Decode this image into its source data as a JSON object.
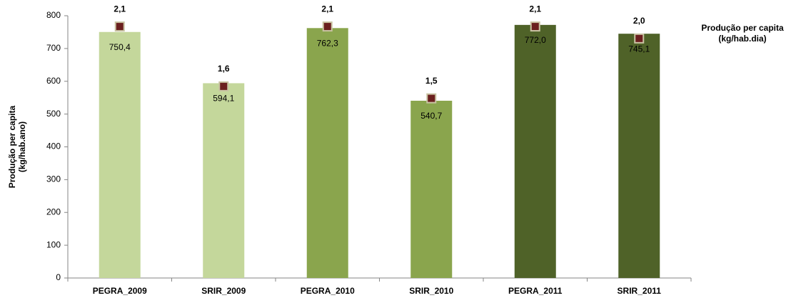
{
  "chart_data": {
    "type": "bar",
    "categories": [
      "PEGRA_2009",
      "SRIR_2009",
      "PEGRA_2010",
      "SRIR_2010",
      "PEGRA_2011",
      "SRIR_2011"
    ],
    "series": [
      {
        "values": [
          750.4,
          594.1,
          762.3,
          540.7,
          772.0,
          745.1
        ],
        "value_labels": [
          "750,4",
          "594,1",
          "762,3",
          "540,7",
          "772,0",
          "745,1"
        ],
        "colors": [
          "#c4d79b",
          "#c4d79b",
          "#8aa54d",
          "#8aa54d",
          "#4f6228",
          "#4f6228"
        ]
      },
      {
        "axis": "y2",
        "type": "marker",
        "color": "#6b1f1f",
        "values": [
          2.1,
          1.6,
          2.1,
          1.5,
          2.1,
          2.0
        ],
        "value_labels": [
          "2,1",
          "1,6",
          "2,1",
          "1,5",
          "2,1",
          "2,0"
        ]
      }
    ],
    "y_label": [
      "Produção per capita",
      "(kg/hab.ano)"
    ],
    "y2_label": [
      "Produção per capita",
      "(kg/hab.dia)"
    ],
    "ylim": [
      0,
      800
    ],
    "yticks": [
      0,
      100,
      200,
      300,
      400,
      500,
      600,
      700,
      800
    ],
    "y2lim": [
      0,
      2.19
    ]
  }
}
